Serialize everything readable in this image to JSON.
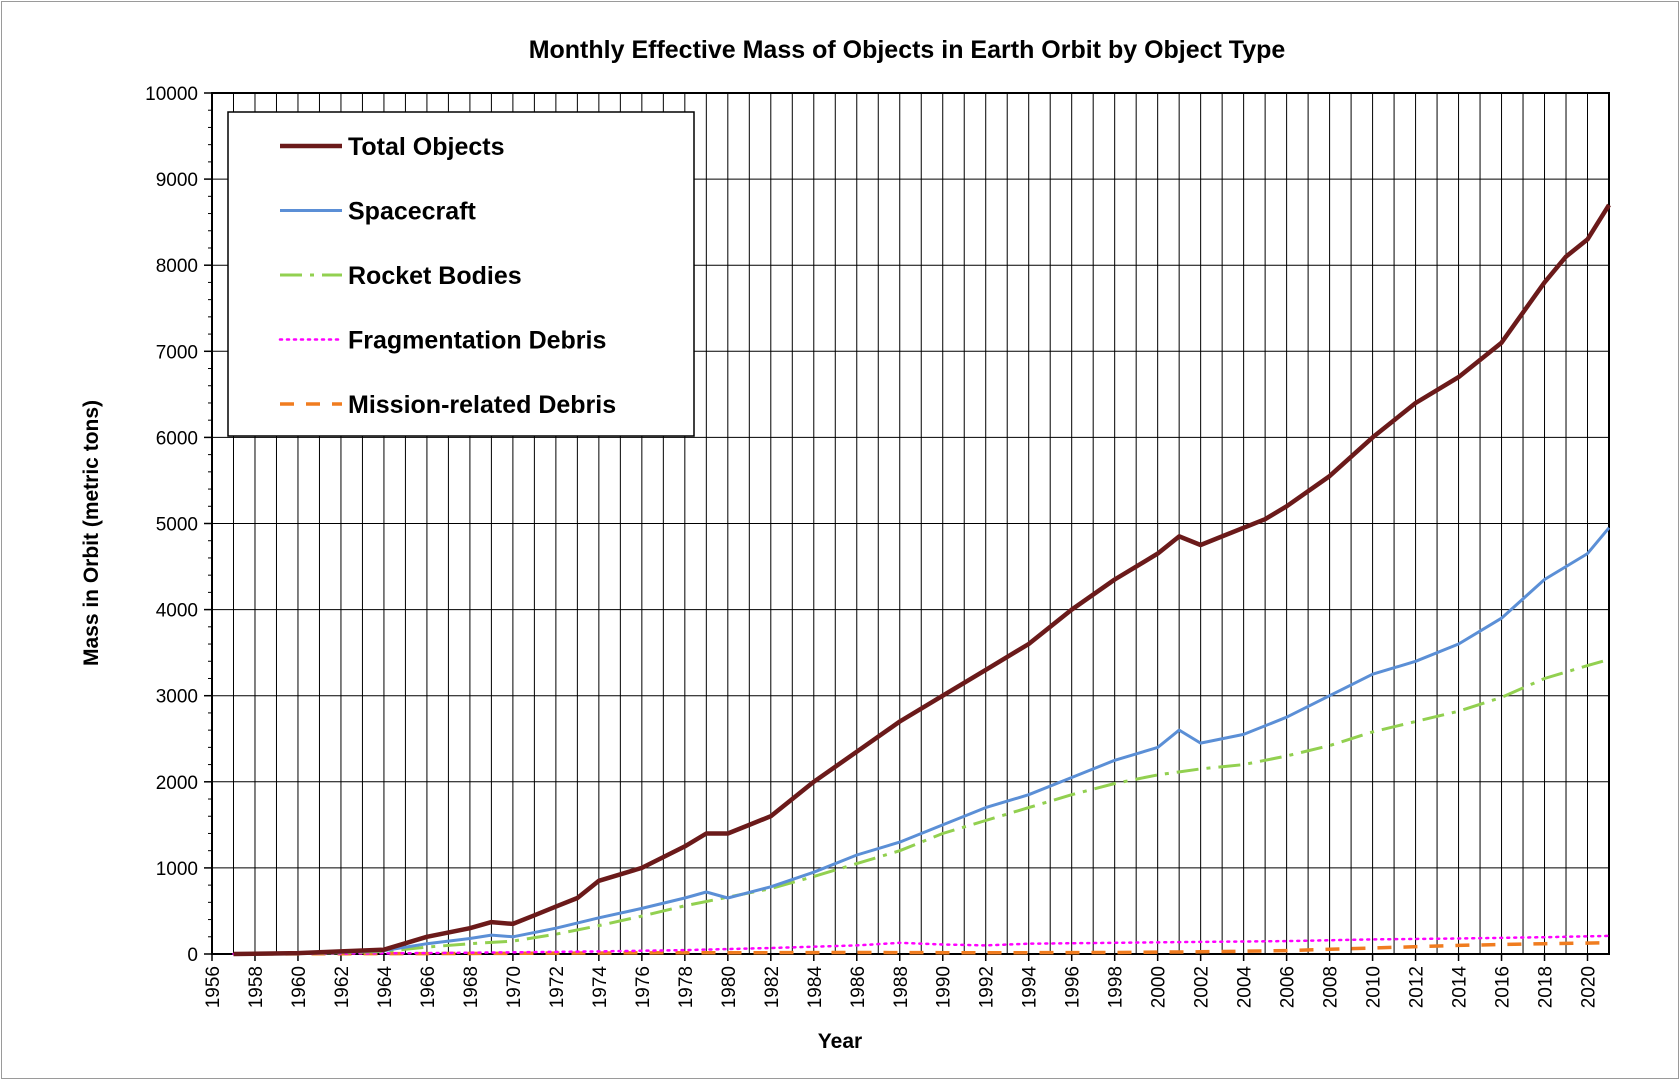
{
  "chart_data": {
    "type": "line",
    "title": "Monthly Effective Mass of Objects in Earth Orbit by Object Type",
    "xlabel": "Year",
    "ylabel": "Mass in Orbit (metric tons)",
    "xlim": [
      1956,
      2021
    ],
    "ylim": [
      0,
      10000
    ],
    "x_ticks": [
      "1956",
      "1958",
      "1960",
      "1962",
      "1964",
      "1966",
      "1968",
      "1970",
      "1972",
      "1974",
      "1976",
      "1978",
      "1980",
      "1982",
      "1984",
      "1986",
      "1988",
      "1990",
      "1992",
      "1994",
      "1996",
      "1998",
      "2000",
      "2002",
      "2004",
      "2006",
      "2008",
      "2010",
      "2012",
      "2014",
      "2016",
      "2018",
      "2020"
    ],
    "y_ticks": [
      "0",
      "1000",
      "2000",
      "3000",
      "4000",
      "5000",
      "6000",
      "7000",
      "8000",
      "9000",
      "10000"
    ],
    "grid": true,
    "legend_position": "top-left",
    "series": [
      {
        "name": "Total Objects",
        "color": "#6b1a1a",
        "style": "solid-thick",
        "points": [
          [
            1957,
            0
          ],
          [
            1960,
            10
          ],
          [
            1962,
            30
          ],
          [
            1964,
            50
          ],
          [
            1966,
            200
          ],
          [
            1968,
            300
          ],
          [
            1969,
            370
          ],
          [
            1970,
            350
          ],
          [
            1971,
            450
          ],
          [
            1972,
            550
          ],
          [
            1973,
            650
          ],
          [
            1974,
            850
          ],
          [
            1976,
            1000
          ],
          [
            1978,
            1250
          ],
          [
            1979,
            1400
          ],
          [
            1980,
            1400
          ],
          [
            1981,
            1500
          ],
          [
            1982,
            1600
          ],
          [
            1983,
            1800
          ],
          [
            1984,
            2000
          ],
          [
            1986,
            2350
          ],
          [
            1988,
            2700
          ],
          [
            1990,
            3000
          ],
          [
            1992,
            3300
          ],
          [
            1994,
            3600
          ],
          [
            1996,
            4000
          ],
          [
            1998,
            4350
          ],
          [
            2000,
            4650
          ],
          [
            2001,
            4850
          ],
          [
            2002,
            4750
          ],
          [
            2003,
            4850
          ],
          [
            2005,
            5050
          ],
          [
            2006,
            5200
          ],
          [
            2008,
            5550
          ],
          [
            2010,
            6000
          ],
          [
            2012,
            6400
          ],
          [
            2014,
            6700
          ],
          [
            2016,
            7100
          ],
          [
            2018,
            7800
          ],
          [
            2019,
            8100
          ],
          [
            2020,
            8300
          ],
          [
            2021,
            8700
          ]
        ]
      },
      {
        "name": "Spacecraft",
        "color": "#5b8fd6",
        "style": "solid",
        "points": [
          [
            1957,
            0
          ],
          [
            1960,
            5
          ],
          [
            1962,
            20
          ],
          [
            1964,
            40
          ],
          [
            1966,
            120
          ],
          [
            1968,
            180
          ],
          [
            1969,
            220
          ],
          [
            1970,
            200
          ],
          [
            1972,
            300
          ],
          [
            1974,
            420
          ],
          [
            1976,
            530
          ],
          [
            1978,
            650
          ],
          [
            1979,
            720
          ],
          [
            1980,
            650
          ],
          [
            1982,
            780
          ],
          [
            1984,
            950
          ],
          [
            1986,
            1150
          ],
          [
            1988,
            1300
          ],
          [
            1990,
            1500
          ],
          [
            1992,
            1700
          ],
          [
            1994,
            1850
          ],
          [
            1996,
            2050
          ],
          [
            1998,
            2250
          ],
          [
            2000,
            2400
          ],
          [
            2001,
            2600
          ],
          [
            2002,
            2450
          ],
          [
            2004,
            2550
          ],
          [
            2006,
            2750
          ],
          [
            2008,
            3000
          ],
          [
            2010,
            3250
          ],
          [
            2012,
            3400
          ],
          [
            2014,
            3600
          ],
          [
            2016,
            3900
          ],
          [
            2018,
            4350
          ],
          [
            2020,
            4650
          ],
          [
            2021,
            4950
          ]
        ]
      },
      {
        "name": "Rocket Bodies",
        "color": "#92d050",
        "style": "dash-dot",
        "points": [
          [
            1957,
            0
          ],
          [
            1960,
            5
          ],
          [
            1962,
            15
          ],
          [
            1964,
            30
          ],
          [
            1966,
            80
          ],
          [
            1968,
            120
          ],
          [
            1970,
            150
          ],
          [
            1972,
            230
          ],
          [
            1974,
            330
          ],
          [
            1976,
            440
          ],
          [
            1978,
            560
          ],
          [
            1980,
            660
          ],
          [
            1982,
            760
          ],
          [
            1984,
            900
          ],
          [
            1986,
            1050
          ],
          [
            1988,
            1200
          ],
          [
            1990,
            1400
          ],
          [
            1992,
            1550
          ],
          [
            1994,
            1700
          ],
          [
            1996,
            1850
          ],
          [
            1998,
            1980
          ],
          [
            2000,
            2080
          ],
          [
            2002,
            2150
          ],
          [
            2004,
            2200
          ],
          [
            2006,
            2300
          ],
          [
            2008,
            2420
          ],
          [
            2010,
            2580
          ],
          [
            2012,
            2700
          ],
          [
            2014,
            2820
          ],
          [
            2016,
            2980
          ],
          [
            2018,
            3200
          ],
          [
            2020,
            3350
          ],
          [
            2021,
            3420
          ]
        ]
      },
      {
        "name": "Fragmentation Debris",
        "color": "#ff00ff",
        "style": "dotted",
        "points": [
          [
            1957,
            0
          ],
          [
            1962,
            5
          ],
          [
            1966,
            10
          ],
          [
            1970,
            20
          ],
          [
            1974,
            30
          ],
          [
            1978,
            45
          ],
          [
            1982,
            70
          ],
          [
            1986,
            100
          ],
          [
            1988,
            130
          ],
          [
            1990,
            110
          ],
          [
            1992,
            100
          ],
          [
            1994,
            120
          ],
          [
            1998,
            130
          ],
          [
            2002,
            140
          ],
          [
            2006,
            150
          ],
          [
            2010,
            170
          ],
          [
            2014,
            180
          ],
          [
            2018,
            195
          ],
          [
            2021,
            210
          ]
        ]
      },
      {
        "name": "Mission-related Debris",
        "color": "#f07c1f",
        "style": "dashed",
        "points": [
          [
            1957,
            0
          ],
          [
            1962,
            3
          ],
          [
            1966,
            5
          ],
          [
            1970,
            8
          ],
          [
            1974,
            12
          ],
          [
            1978,
            15
          ],
          [
            1982,
            15
          ],
          [
            1986,
            18
          ],
          [
            1990,
            15
          ],
          [
            1994,
            15
          ],
          [
            1998,
            18
          ],
          [
            2002,
            25
          ],
          [
            2006,
            40
          ],
          [
            2010,
            70
          ],
          [
            2014,
            100
          ],
          [
            2018,
            120
          ],
          [
            2021,
            130
          ]
        ]
      }
    ]
  }
}
